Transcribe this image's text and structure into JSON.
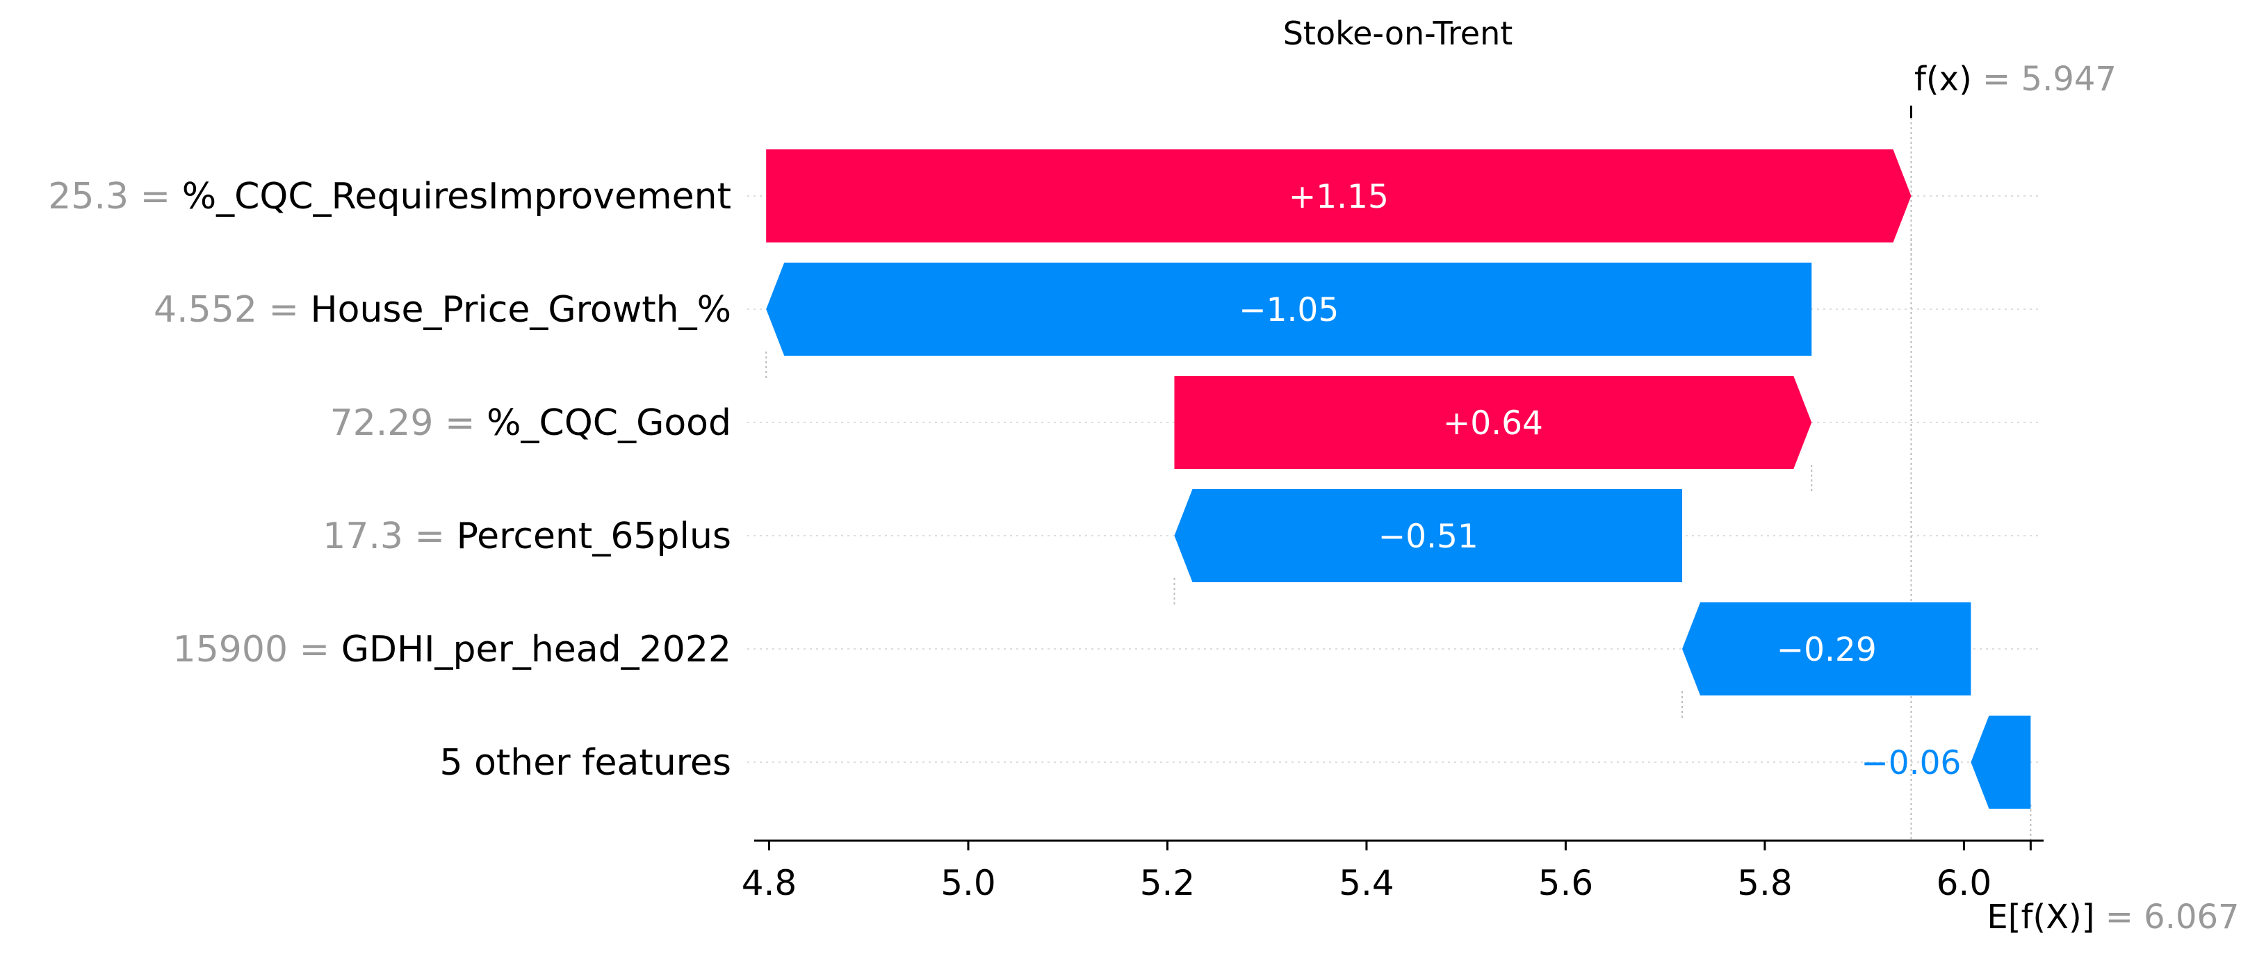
{
  "chart_data": {
    "type": "bar",
    "subtype": "shap-waterfall",
    "title": "Stoke-on-Trent",
    "base_value": 6.067,
    "output_value": 5.947,
    "base_value_label_text": "6.067",
    "output_value_label_text": "5.947",
    "base_value_expr_text": "E[f(X)]",
    "output_value_expr_text": "f(x)",
    "xlim": [
      4.785,
      6.08
    ],
    "xticks": [
      4.8,
      5.0,
      5.2,
      5.4,
      5.6,
      5.8,
      6.0
    ],
    "xtick_labels": [
      "4.8",
      "5.0",
      "5.2",
      "5.4",
      "5.6",
      "5.8",
      "6.0"
    ],
    "features": [
      {
        "value": "25.3",
        "name": "%_CQC_RequiresImprovement",
        "contribution": 1.15,
        "label": "+1.15"
      },
      {
        "value": "4.552",
        "name": "House_Price_Growth_%",
        "contribution": -1.05,
        "label": "−1.05"
      },
      {
        "value": "72.29",
        "name": "%_CQC_Good",
        "contribution": 0.64,
        "label": "+0.64"
      },
      {
        "value": "17.3",
        "name": "Percent_65plus",
        "contribution": -0.51,
        "label": "−0.51"
      },
      {
        "value": "15900",
        "name": "GDHI_per_head_2022",
        "contribution": -0.29,
        "label": "−0.29"
      },
      {
        "value": "",
        "name": "5 other features",
        "contribution": -0.06,
        "label": "−0.06"
      }
    ],
    "colors": {
      "positive": "#ff0051",
      "negative": "#008bfb",
      "gray_text": "#999999",
      "grid": "#dddddd",
      "connector": "#bbbbbb"
    }
  }
}
